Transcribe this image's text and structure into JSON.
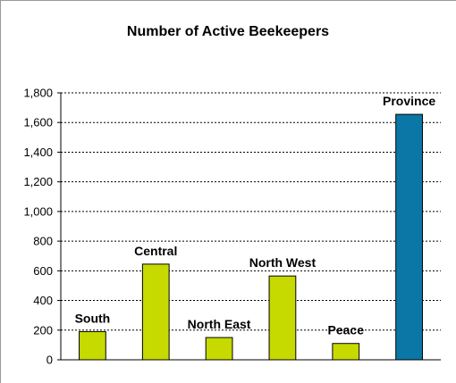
{
  "chart_data": {
    "type": "bar",
    "title": "Number of Active Beekeepers",
    "categories": [
      "South",
      "Central",
      "North East",
      "North West",
      "Peace",
      "Province"
    ],
    "values": [
      190,
      645,
      150,
      565,
      110,
      1655
    ],
    "ylim": [
      0,
      1800
    ],
    "yticks": [
      "0",
      "200",
      "400",
      "600",
      "800",
      "1,000",
      "1,200",
      "1,400",
      "1,600",
      "1,800"
    ],
    "grid": "horizontal dashed",
    "legend": "none",
    "colors": {
      "region": "#c6da00",
      "province": "#0a77a6",
      "outline": "#000000"
    }
  }
}
